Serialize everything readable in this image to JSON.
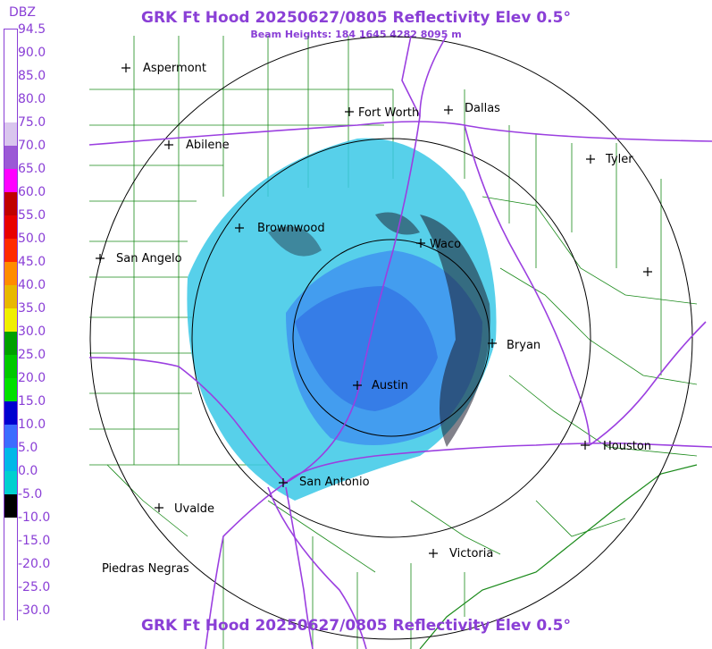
{
  "title": "GRK Ft Hood 20250627/0805 Reflectivity Elev 0.5°",
  "subtitle": "Beam Heights: 184 1645 4282 8095 m",
  "legend": {
    "unit": "DBZ",
    "levels": [
      {
        "label": "94.5",
        "color": "#ffffff"
      },
      {
        "label": "90.0",
        "color": "#ffffff"
      },
      {
        "label": "85.0",
        "color": "#ffffff"
      },
      {
        "label": "80.0",
        "color": "#ffffff"
      },
      {
        "label": "75.0",
        "color": "#d9c6ee"
      },
      {
        "label": "70.0",
        "color": "#9b59d6"
      },
      {
        "label": "65.0",
        "color": "#ff00ff"
      },
      {
        "label": "60.0",
        "color": "#c00000"
      },
      {
        "label": "55.0",
        "color": "#e80000"
      },
      {
        "label": "50.0",
        "color": "#ff2a00"
      },
      {
        "label": "45.0",
        "color": "#ff8c00"
      },
      {
        "label": "40.0",
        "color": "#e8b800"
      },
      {
        "label": "35.0",
        "color": "#f0f000"
      },
      {
        "label": "30.0",
        "color": "#00a000"
      },
      {
        "label": "25.0",
        "color": "#00c800"
      },
      {
        "label": "20.0",
        "color": "#00e000"
      },
      {
        "label": "15.0",
        "color": "#0000d0"
      },
      {
        "label": "10.0",
        "color": "#3c6cff"
      },
      {
        "label": "5.0",
        "color": "#00b8e8"
      },
      {
        "label": "0.0",
        "color": "#00d0d0"
      },
      {
        "label": "-5.0",
        "color": "#000000"
      },
      {
        "label": "-10.0",
        "color": "#ffffff"
      },
      {
        "label": "-15.0",
        "color": "#ffffff"
      },
      {
        "label": "-20.0",
        "color": "#ffffff"
      },
      {
        "label": "-25.0",
        "color": "#ffffff"
      },
      {
        "label": "-30.0",
        "color": "#ffffff"
      }
    ]
  },
  "cities": [
    "Aspermont",
    "Fort Worth",
    "Dallas",
    "Abilene",
    "Tyler",
    "Brownwood",
    "Waco",
    "San Angelo",
    "Bryan",
    "Austin",
    "Houston",
    "San Antonio",
    "Uvalde",
    "Victoria",
    "Piedras Negras"
  ],
  "colors": {
    "title": "#8a3fd6",
    "highway": "#9b3fe0",
    "county": "#1a8a1a",
    "ring": "#000000"
  }
}
